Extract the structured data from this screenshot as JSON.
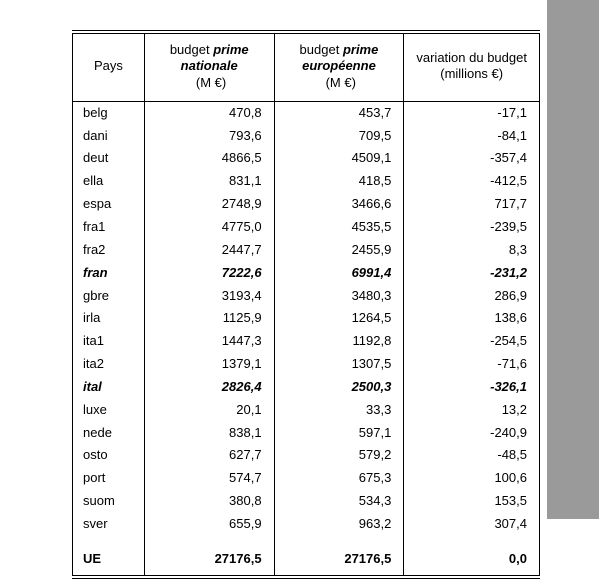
{
  "header": {
    "col1": "Pays",
    "col2_prefix": "budget",
    "col2_ital": "prime nationale",
    "col2_units": "(M €)",
    "col3_prefix": "budget",
    "col3_ital": "prime européenne",
    "col3_units": "(M €)",
    "col4_line1": "variation du budget",
    "col4_line2": "(millions €)"
  },
  "rows": [
    {
      "c": "belg",
      "n": "470,8",
      "e": "453,7",
      "v": "-17,1",
      "bold": false
    },
    {
      "c": "dani",
      "n": "793,6",
      "e": "709,5",
      "v": "-84,1",
      "bold": false
    },
    {
      "c": "deut",
      "n": "4866,5",
      "e": "4509,1",
      "v": "-357,4",
      "bold": false
    },
    {
      "c": "ella",
      "n": "831,1",
      "e": "418,5",
      "v": "-412,5",
      "bold": false
    },
    {
      "c": "espa",
      "n": "2748,9",
      "e": "3466,6",
      "v": "717,7",
      "bold": false
    },
    {
      "c": "fra1",
      "n": "4775,0",
      "e": "4535,5",
      "v": "-239,5",
      "bold": false
    },
    {
      "c": "fra2",
      "n": "2447,7",
      "e": "2455,9",
      "v": "8,3",
      "bold": false
    },
    {
      "c": "fran",
      "n": "7222,6",
      "e": "6991,4",
      "v": "-231,2",
      "bold": true
    },
    {
      "c": "gbre",
      "n": "3193,4",
      "e": "3480,3",
      "v": "286,9",
      "bold": false
    },
    {
      "c": "irla",
      "n": "1125,9",
      "e": "1264,5",
      "v": "138,6",
      "bold": false
    },
    {
      "c": "ita1",
      "n": "1447,3",
      "e": "1192,8",
      "v": "-254,5",
      "bold": false
    },
    {
      "c": "ita2",
      "n": "1379,1",
      "e": "1307,5",
      "v": "-71,6",
      "bold": false
    },
    {
      "c": "ital",
      "n": "2826,4",
      "e": "2500,3",
      "v": "-326,1",
      "bold": true
    },
    {
      "c": "luxe",
      "n": "20,1",
      "e": "33,3",
      "v": "13,2",
      "bold": false
    },
    {
      "c": "nede",
      "n": "838,1",
      "e": "597,1",
      "v": "-240,9",
      "bold": false
    },
    {
      "c": "osto",
      "n": "627,7",
      "e": "579,2",
      "v": "-48,5",
      "bold": false
    },
    {
      "c": "port",
      "n": "574,7",
      "e": "675,3",
      "v": "100,6",
      "bold": false
    },
    {
      "c": "suom",
      "n": "380,8",
      "e": "534,3",
      "v": "153,5",
      "bold": false
    },
    {
      "c": "sver",
      "n": "655,9",
      "e": "963,2",
      "v": "307,4",
      "bold": false
    }
  ],
  "total": {
    "c": "UE",
    "n": "27176,5",
    "e": "27176,5",
    "v": "0,0"
  }
}
